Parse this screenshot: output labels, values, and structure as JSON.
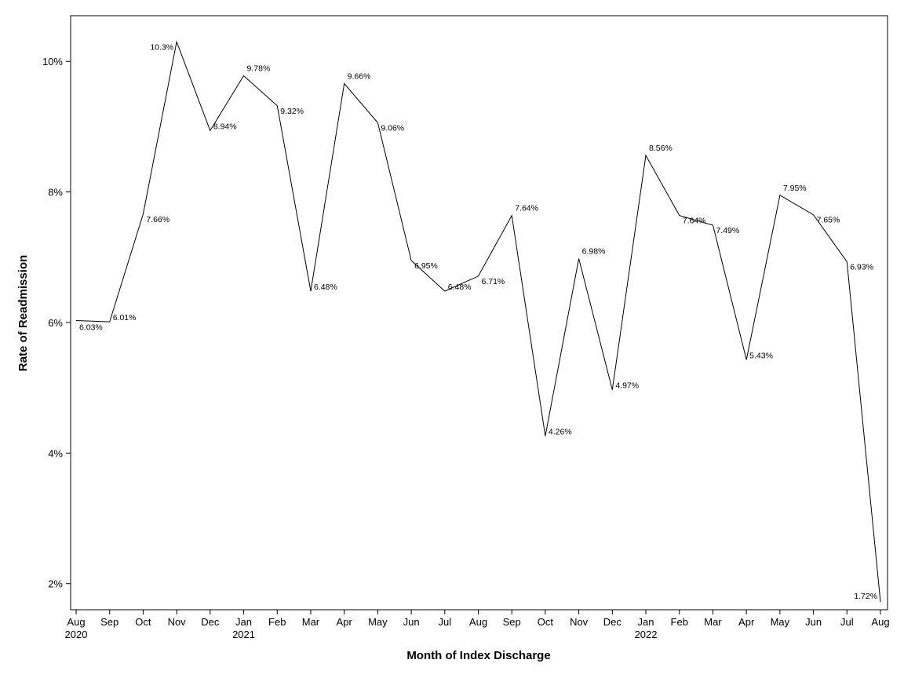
{
  "chart_data": {
    "type": "line",
    "title": "",
    "xlabel": "Month of Index Discharge",
    "ylabel": "Rate of Readmission",
    "ylim": [
      1.6,
      10.7
    ],
    "yticks": [
      2,
      4,
      6,
      8,
      10
    ],
    "ytick_labels": [
      "2%",
      "4%",
      "6%",
      "8%",
      "10%"
    ],
    "grid": false,
    "legend": "none",
    "series": [
      {
        "name": "Rate of Readmission",
        "points": [
          {
            "month": "Aug",
            "year": "2020",
            "value": 6.03,
            "label": "6.03%"
          },
          {
            "month": "Sep",
            "year": "",
            "value": 6.01,
            "label": "6.01%"
          },
          {
            "month": "Oct",
            "year": "",
            "value": 7.66,
            "label": "7.66%"
          },
          {
            "month": "Nov",
            "year": "",
            "value": 10.3,
            "label": "10.3%"
          },
          {
            "month": "Dec",
            "year": "",
            "value": 8.94,
            "label": "8.94%"
          },
          {
            "month": "Jan",
            "year": "2021",
            "value": 9.78,
            "label": "9.78%"
          },
          {
            "month": "Feb",
            "year": "",
            "value": 9.32,
            "label": "9.32%"
          },
          {
            "month": "Mar",
            "year": "",
            "value": 6.48,
            "label": "6.48%"
          },
          {
            "month": "Apr",
            "year": "",
            "value": 9.66,
            "label": "9.66%"
          },
          {
            "month": "May",
            "year": "",
            "value": 9.06,
            "label": "9.06%"
          },
          {
            "month": "Jun",
            "year": "",
            "value": 6.95,
            "label": "6.95%"
          },
          {
            "month": "Jul",
            "year": "",
            "value": 6.48,
            "label": "6.48%"
          },
          {
            "month": "Aug",
            "year": "",
            "value": 6.71,
            "label": "6.71%"
          },
          {
            "month": "Sep",
            "year": "",
            "value": 7.64,
            "label": "7.64%"
          },
          {
            "month": "Oct",
            "year": "",
            "value": 4.26,
            "label": "4.26%"
          },
          {
            "month": "Nov",
            "year": "",
            "value": 6.98,
            "label": "6.98%"
          },
          {
            "month": "Dec",
            "year": "",
            "value": 4.97,
            "label": "4.97%"
          },
          {
            "month": "Jan",
            "year": "2022",
            "value": 8.56,
            "label": "8.56%"
          },
          {
            "month": "Feb",
            "year": "",
            "value": 7.64,
            "label": "7.64%"
          },
          {
            "month": "Mar",
            "year": "",
            "value": 7.49,
            "label": "7.49%"
          },
          {
            "month": "Apr",
            "year": "",
            "value": 5.43,
            "label": "5.43%"
          },
          {
            "month": "May",
            "year": "",
            "value": 7.95,
            "label": "7.95%"
          },
          {
            "month": "Jun",
            "year": "",
            "value": 7.65,
            "label": "7.65%"
          },
          {
            "month": "Jul",
            "year": "",
            "value": 6.93,
            "label": "6.93%"
          },
          {
            "month": "Aug",
            "year": "",
            "value": 1.72,
            "label": "1.72%"
          }
        ]
      }
    ],
    "colors": {
      "line": "#000000",
      "axis": "#000000",
      "background": "#ffffff"
    }
  }
}
